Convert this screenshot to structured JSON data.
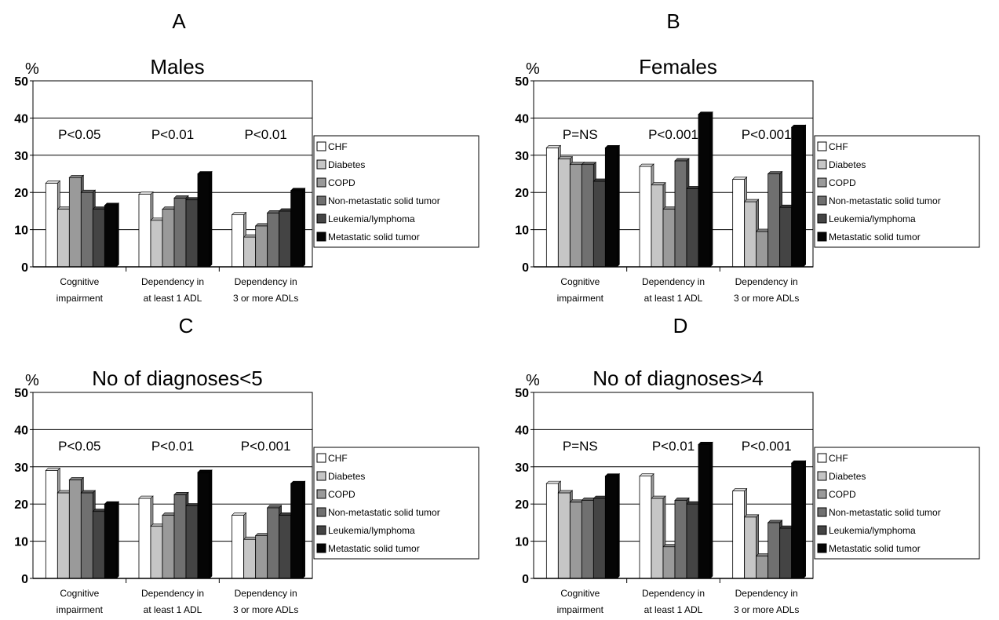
{
  "legend": {
    "entries": [
      "CHF",
      "Diabetes",
      "COPD",
      "Non-metastatic solid tumor",
      "Leukemia/lymphoma",
      "Metastatic solid tumor"
    ],
    "colors": [
      "#ffffff",
      "#c6c6c6",
      "#9a9a9a",
      "#707070",
      "#444444",
      "#050505"
    ]
  },
  "chart_data": [
    {
      "type": "bar",
      "panel": "A",
      "title": "Males",
      "ylabel": "%",
      "ylim": [
        0,
        50
      ],
      "yticks": [
        "0",
        "10",
        "20",
        "30",
        "40",
        "50"
      ],
      "grid": true,
      "legend_position": "right",
      "categories": [
        [
          "Cognitive",
          "impairment"
        ],
        [
          "Dependency in",
          "at least 1 ADL"
        ],
        [
          "Dependency in",
          "3 or more ADLs"
        ]
      ],
      "pvalues": [
        "P<0.05",
        "P<0.01",
        "P<0.01"
      ],
      "series": [
        {
          "name": "CHF",
          "values": [
            22.5,
            19.5,
            14
          ]
        },
        {
          "name": "Diabetes",
          "values": [
            15.5,
            12.5,
            8
          ]
        },
        {
          "name": "COPD",
          "values": [
            24,
            15.5,
            11
          ]
        },
        {
          "name": "Non-metastatic solid tumor",
          "values": [
            20,
            18.5,
            14.5
          ]
        },
        {
          "name": "Leukemia/lymphoma",
          "values": [
            15.5,
            18,
            15
          ]
        },
        {
          "name": "Metastatic solid tumor",
          "values": [
            16.5,
            25,
            20.5
          ]
        }
      ]
    },
    {
      "type": "bar",
      "panel": "B",
      "title": "Females",
      "ylabel": "%",
      "ylim": [
        0,
        50
      ],
      "yticks": [
        "0",
        "10",
        "20",
        "30",
        "40",
        "50"
      ],
      "grid": true,
      "legend_position": "right",
      "categories": [
        [
          "Cognitive",
          "impairment"
        ],
        [
          "Dependency in",
          "at least 1 ADL"
        ],
        [
          "Dependency in",
          "3 or more ADLs"
        ]
      ],
      "pvalues": [
        "P=NS",
        "P<0.001",
        "P<0.001"
      ],
      "series": [
        {
          "name": "CHF",
          "values": [
            32,
            27,
            23.5
          ]
        },
        {
          "name": "Diabetes",
          "values": [
            29,
            22,
            17.5
          ]
        },
        {
          "name": "COPD",
          "values": [
            27.5,
            15.5,
            9.5
          ]
        },
        {
          "name": "Non-metastatic solid tumor",
          "values": [
            27.5,
            28.5,
            25
          ]
        },
        {
          "name": "Leukemia/lymphoma",
          "values": [
            23,
            21,
            16
          ]
        },
        {
          "name": "Metastatic solid tumor",
          "values": [
            32,
            41,
            37.5
          ]
        }
      ]
    },
    {
      "type": "bar",
      "panel": "C",
      "title": "No of diagnoses<5",
      "ylabel": "%",
      "ylim": [
        0,
        50
      ],
      "yticks": [
        "0",
        "10",
        "20",
        "30",
        "40",
        "50"
      ],
      "grid": true,
      "legend_position": "right",
      "categories": [
        [
          "Cognitive",
          "impairment"
        ],
        [
          "Dependency in",
          "at least 1 ADL"
        ],
        [
          "Dependency in",
          "3 or more ADLs"
        ]
      ],
      "pvalues": [
        "P<0.05",
        "P<0.01",
        "P<0.001"
      ],
      "series": [
        {
          "name": "CHF",
          "values": [
            29,
            21.5,
            17
          ]
        },
        {
          "name": "Diabetes",
          "values": [
            23,
            14,
            10.5
          ]
        },
        {
          "name": "COPD",
          "values": [
            26.5,
            17,
            11.5
          ]
        },
        {
          "name": "Non-metastatic solid tumor",
          "values": [
            23,
            22.5,
            19
          ]
        },
        {
          "name": "Leukemia/lymphoma",
          "values": [
            18,
            19.5,
            17
          ]
        },
        {
          "name": "Metastatic solid tumor",
          "values": [
            20,
            28.5,
            25.5
          ]
        }
      ]
    },
    {
      "type": "bar",
      "panel": "D",
      "title": "No of diagnoses>4",
      "ylabel": "%",
      "ylim": [
        0,
        50
      ],
      "yticks": [
        "0",
        "10",
        "20",
        "30",
        "40",
        "50"
      ],
      "grid": true,
      "legend_position": "right",
      "categories": [
        [
          "Cognitive",
          "impairment"
        ],
        [
          "Dependency in",
          "at least 1 ADL"
        ],
        [
          "Dependency in",
          "3 or more ADLs"
        ]
      ],
      "pvalues": [
        "P=NS",
        "P<0.01",
        "P<0.001"
      ],
      "series": [
        {
          "name": "CHF",
          "values": [
            25.5,
            27.5,
            23.5
          ]
        },
        {
          "name": "Diabetes",
          "values": [
            23,
            21.5,
            16.5
          ]
        },
        {
          "name": "COPD",
          "values": [
            20.5,
            8.5,
            6
          ]
        },
        {
          "name": "Non-metastatic solid tumor",
          "values": [
            21,
            21,
            15
          ]
        },
        {
          "name": "Leukemia/lymphoma",
          "values": [
            21.5,
            20,
            13.5
          ]
        },
        {
          "name": "Metastatic solid tumor",
          "values": [
            27.5,
            36,
            31
          ]
        }
      ]
    }
  ]
}
